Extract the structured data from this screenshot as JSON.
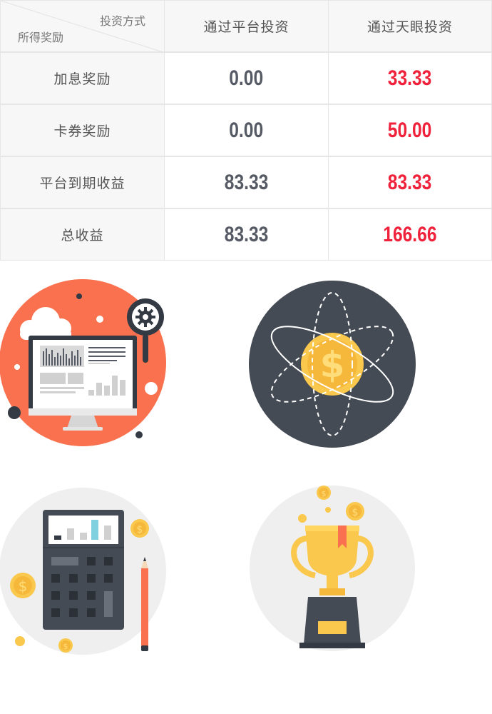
{
  "table": {
    "header": {
      "corner_top": "投资方式",
      "corner_bottom": "所得奖励",
      "col1": "通过平台投资",
      "col2": "通过天眼投资"
    },
    "rows": [
      {
        "label": "加息奖励",
        "platform": "0.00",
        "tianyan": "33.33"
      },
      {
        "label": "卡券奖励",
        "platform": "0.00",
        "tianyan": "50.00"
      },
      {
        "label": "平台到期收益",
        "platform": "83.33",
        "tianyan": "83.33"
      },
      {
        "label": "总收益",
        "platform": "83.33",
        "tianyan": "166.66"
      }
    ]
  },
  "colors": {
    "value_gray": "#555a64",
    "value_red": "#f0213b",
    "coral": "#f9714f",
    "dark_slate": "#454b54",
    "gold": "#f9c84c",
    "light_circle": "#efefef"
  },
  "illustrations": [
    {
      "icon": "analytics-monitor-icon"
    },
    {
      "icon": "atom-dollar-icon"
    },
    {
      "icon": "calculator-icon"
    },
    {
      "icon": "trophy-icon"
    }
  ]
}
